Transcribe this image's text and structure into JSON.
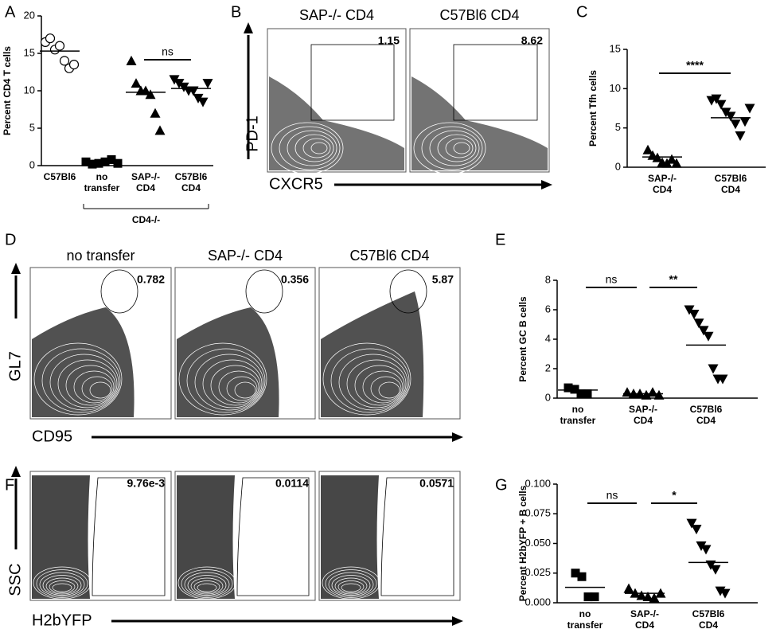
{
  "panel_labels": [
    "A",
    "B",
    "C",
    "D",
    "E",
    "F",
    "G"
  ],
  "chart_data": [
    {
      "type": "dotplot",
      "ylabel": "Percent CD4 T cells",
      "categories": [
        [
          "C57Bl6"
        ],
        [
          "no",
          "transfer"
        ],
        [
          "SAP-/-",
          "CD4"
        ],
        [
          "C57Bl6",
          "CD4"
        ]
      ],
      "markers": [
        "circle-open",
        "square",
        "triangle",
        "triangle-down"
      ],
      "points": [
        [
          16.5,
          17,
          15.5,
          16,
          14,
          13,
          13.5
        ],
        [
          0.5,
          0.2,
          0.3,
          0.5,
          0.8,
          0.3
        ],
        [
          14,
          11,
          10,
          10,
          9.5,
          7,
          4.7
        ],
        [
          11.5,
          11,
          10.5,
          10,
          10,
          9,
          8.5,
          11
        ]
      ],
      "means": [
        15.3,
        0.4,
        9.8,
        10.3
      ],
      "annotations": [
        "ns"
      ],
      "group_label": "CD4-/-",
      "ylim": [
        0,
        20
      ],
      "yticks": [
        0,
        5,
        10,
        15,
        20
      ]
    },
    {
      "type": "dotplot",
      "ylabel": "Percent Tfh cells",
      "categories": [
        [
          "SAP-/-",
          "CD4"
        ],
        [
          "C57Bl6",
          "CD4"
        ]
      ],
      "markers": [
        "triangle",
        "triangle-down"
      ],
      "points": [
        [
          2.2,
          1.5,
          1.2,
          0.6,
          0.5,
          1.0,
          0.5
        ],
        [
          8.5,
          8.7,
          8.0,
          7.0,
          6.5,
          5.5,
          4.0,
          5.8,
          7.5
        ]
      ],
      "means": [
        1.3,
        6.3
      ],
      "annotations": [
        "****"
      ],
      "ylim": [
        0,
        15
      ],
      "yticks": [
        0,
        5,
        10,
        15
      ]
    },
    {
      "type": "dotplot",
      "ylabel": "Percent GC B cells",
      "categories": [
        [
          "no",
          "transfer"
        ],
        [
          "SAP-/-",
          "CD4"
        ],
        [
          "C57Bl6",
          "CD4"
        ]
      ],
      "markers": [
        "square",
        "triangle",
        "triangle-down"
      ],
      "points": [
        [
          0.7,
          0.6,
          0.3,
          0.3
        ],
        [
          0.4,
          0.3,
          0.3,
          0.2,
          0.4,
          0.2
        ],
        [
          6.0,
          5.7,
          5.1,
          4.6,
          4.2,
          2.0,
          1.3,
          1.3
        ]
      ],
      "means": [
        0.55,
        0.3,
        3.6
      ],
      "annotations": [
        "ns",
        "**"
      ],
      "ylim": [
        0,
        8
      ],
      "yticks": [
        0,
        2,
        4,
        6,
        8
      ]
    },
    {
      "type": "dotplot",
      "ylabel": "Percent H2bYFP + B cells",
      "categories": [
        [
          "no",
          "transfer"
        ],
        [
          "SAP-/-",
          "CD4"
        ],
        [
          "C57Bl6",
          "CD4"
        ]
      ],
      "markers": [
        "square",
        "triangle",
        "triangle-down"
      ],
      "points": [
        [
          0.025,
          0.022,
          0.005,
          0.005
        ],
        [
          0.012,
          0.008,
          0.006,
          0.005,
          0.004,
          0.008
        ],
        [
          0.067,
          0.062,
          0.048,
          0.045,
          0.032,
          0.028,
          0.01,
          0.008
        ]
      ],
      "means": [
        0.013,
        0.008,
        0.034
      ],
      "annotations": [
        "ns",
        "*"
      ],
      "ylim": [
        0,
        0.1
      ],
      "yticks": [
        {
          "value": 0,
          "label": "0.000"
        },
        {
          "value": 0.025,
          "label": "0.025"
        },
        {
          "value": 0.05,
          "label": "0.050"
        },
        {
          "value": 0.075,
          "label": "0.075"
        },
        {
          "value": 0.1,
          "label": "0.100"
        }
      ]
    }
  ],
  "flow": [
    {
      "titles": [
        "SAP-/- CD4",
        "C57Bl6 CD4"
      ],
      "gates": [
        "1.15",
        "8.62"
      ],
      "y_axis": "PD-1",
      "x_axis": "CXCR5"
    },
    {
      "titles": [
        "no transfer",
        "SAP-/- CD4",
        "C57Bl6 CD4"
      ],
      "gates": [
        "0.782",
        "0.356",
        "5.87"
      ],
      "y_axis": "GL7",
      "x_axis": "CD95"
    },
    {
      "titles": [],
      "gates": [
        "9.76e-3",
        "0.0114",
        "0.0571"
      ],
      "y_axis": "SSC",
      "x_axis": "H2bYFP"
    }
  ]
}
